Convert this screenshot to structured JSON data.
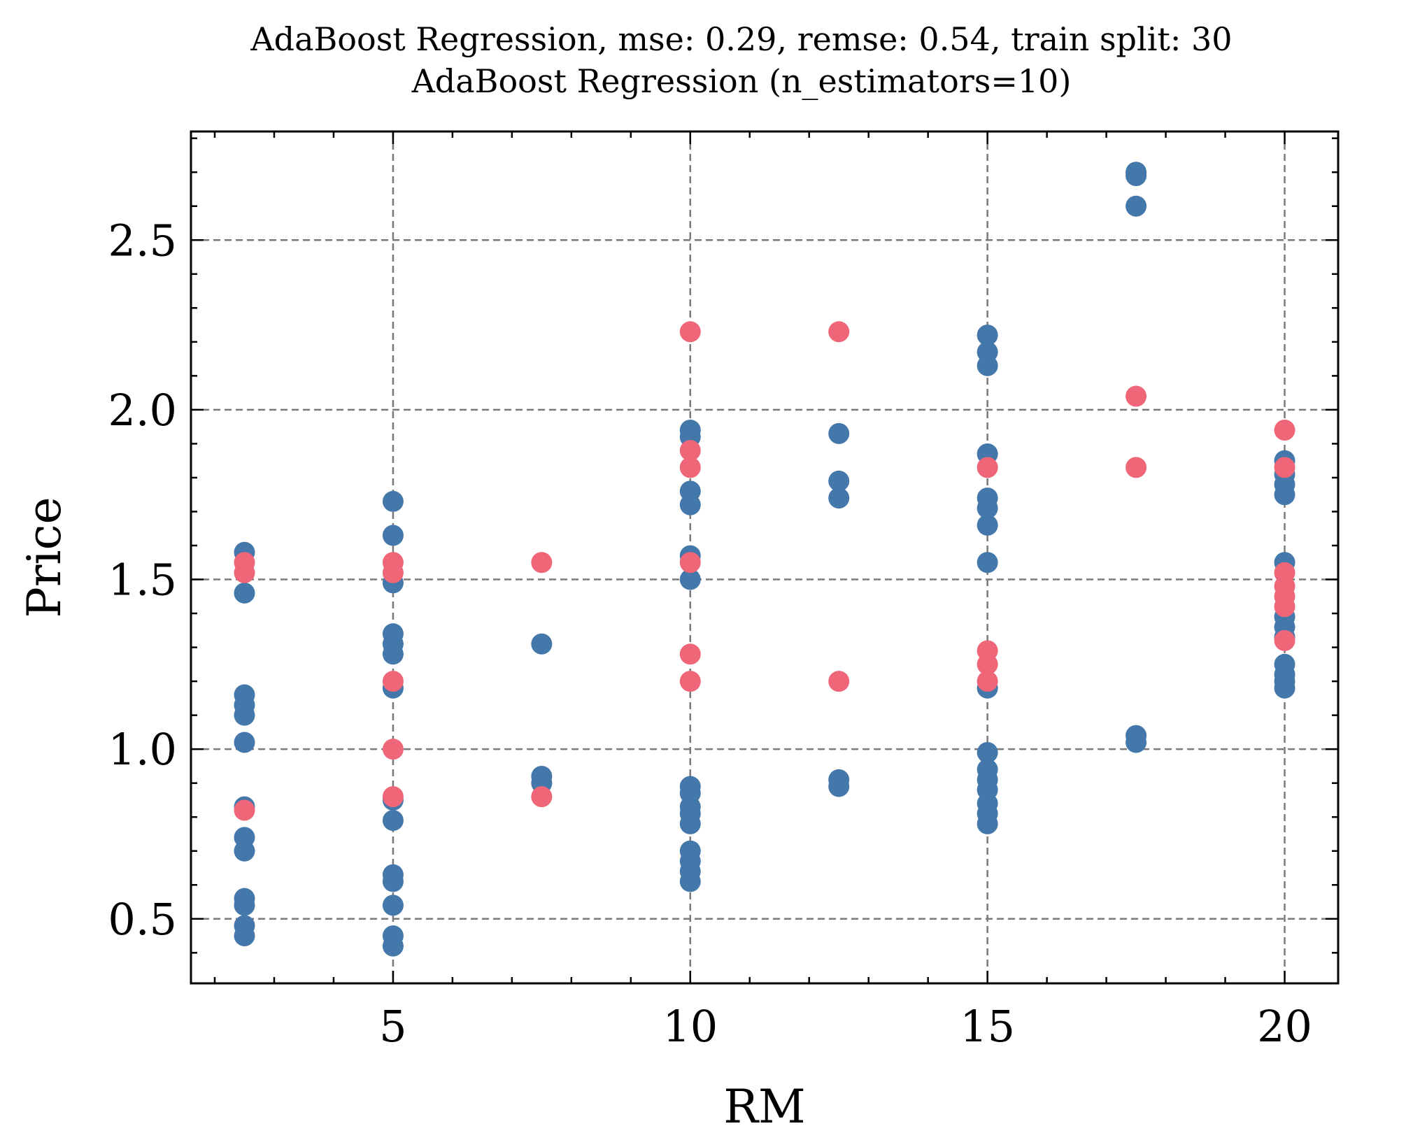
{
  "chart_data": {
    "type": "scatter",
    "title": "AdaBoost Regression, mse: 0.29, remse: 0.54, train split: 30",
    "subtitle": "AdaBoost Regression (n_estimators=10)",
    "xlabel": "RM",
    "ylabel": "Price",
    "xlim": [
      1.6,
      20.9
    ],
    "ylim": [
      0.31,
      2.82
    ],
    "xticks": [
      5,
      10,
      15,
      20
    ],
    "xtick_labels": [
      "5",
      "10",
      "15",
      "20"
    ],
    "yticks": [
      0.5,
      1.0,
      1.5,
      2.0,
      2.5
    ],
    "ytick_labels": [
      "0.5",
      "1.0",
      "1.5",
      "2.0",
      "2.5"
    ],
    "grid": true,
    "series": [
      {
        "color": "#4477aa",
        "points": [
          [
            2.5,
            1.58
          ],
          [
            2.5,
            1.46
          ],
          [
            2.5,
            1.16
          ],
          [
            2.5,
            1.13
          ],
          [
            2.5,
            1.1
          ],
          [
            2.5,
            1.02
          ],
          [
            2.5,
            0.83
          ],
          [
            2.5,
            0.74
          ],
          [
            2.5,
            0.7
          ],
          [
            2.5,
            0.56
          ],
          [
            2.5,
            0.54
          ],
          [
            2.5,
            0.48
          ],
          [
            2.5,
            0.45
          ],
          [
            5.0,
            1.73
          ],
          [
            5.0,
            1.63
          ],
          [
            5.0,
            1.49
          ],
          [
            5.0,
            1.34
          ],
          [
            5.0,
            1.31
          ],
          [
            5.0,
            1.28
          ],
          [
            5.0,
            1.18
          ],
          [
            5.0,
            0.85
          ],
          [
            5.0,
            0.79
          ],
          [
            5.0,
            0.63
          ],
          [
            5.0,
            0.61
          ],
          [
            5.0,
            0.54
          ],
          [
            5.0,
            0.45
          ],
          [
            5.0,
            0.42
          ],
          [
            7.5,
            1.31
          ],
          [
            7.5,
            0.92
          ],
          [
            7.5,
            0.9
          ],
          [
            10.0,
            1.94
          ],
          [
            10.0,
            1.92
          ],
          [
            10.0,
            1.76
          ],
          [
            10.0,
            1.72
          ],
          [
            10.0,
            1.57
          ],
          [
            10.0,
            1.5
          ],
          [
            10.0,
            0.89
          ],
          [
            10.0,
            0.87
          ],
          [
            10.0,
            0.83
          ],
          [
            10.0,
            0.81
          ],
          [
            10.0,
            0.78
          ],
          [
            10.0,
            0.7
          ],
          [
            10.0,
            0.67
          ],
          [
            10.0,
            0.64
          ],
          [
            10.0,
            0.61
          ],
          [
            12.5,
            1.93
          ],
          [
            12.5,
            1.79
          ],
          [
            12.5,
            1.74
          ],
          [
            12.5,
            0.91
          ],
          [
            12.5,
            0.89
          ],
          [
            15.0,
            2.22
          ],
          [
            15.0,
            2.17
          ],
          [
            15.0,
            2.13
          ],
          [
            15.0,
            1.87
          ],
          [
            15.0,
            1.74
          ],
          [
            15.0,
            1.71
          ],
          [
            15.0,
            1.66
          ],
          [
            15.0,
            1.55
          ],
          [
            15.0,
            1.18
          ],
          [
            15.0,
            0.99
          ],
          [
            15.0,
            0.94
          ],
          [
            15.0,
            0.91
          ],
          [
            15.0,
            0.88
          ],
          [
            15.0,
            0.84
          ],
          [
            15.0,
            0.81
          ],
          [
            15.0,
            0.78
          ],
          [
            17.5,
            2.7
          ],
          [
            17.5,
            2.69
          ],
          [
            17.5,
            2.6
          ],
          [
            17.5,
            1.04
          ],
          [
            17.5,
            1.02
          ],
          [
            20.0,
            1.85
          ],
          [
            20.0,
            1.81
          ],
          [
            20.0,
            1.78
          ],
          [
            20.0,
            1.75
          ],
          [
            20.0,
            1.55
          ],
          [
            20.0,
            1.39
          ],
          [
            20.0,
            1.36
          ],
          [
            20.0,
            1.33
          ],
          [
            20.0,
            1.25
          ],
          [
            20.0,
            1.22
          ],
          [
            20.0,
            1.2
          ],
          [
            20.0,
            1.18
          ]
        ]
      },
      {
        "color": "#ee6677",
        "points": [
          [
            2.5,
            1.55
          ],
          [
            2.5,
            1.52
          ],
          [
            2.5,
            0.82
          ],
          [
            5.0,
            1.55
          ],
          [
            5.0,
            1.52
          ],
          [
            5.0,
            1.2
          ],
          [
            5.0,
            1.0
          ],
          [
            5.0,
            0.86
          ],
          [
            7.5,
            1.55
          ],
          [
            7.5,
            0.86
          ],
          [
            10.0,
            2.23
          ],
          [
            10.0,
            1.88
          ],
          [
            10.0,
            1.83
          ],
          [
            10.0,
            1.55
          ],
          [
            10.0,
            1.28
          ],
          [
            10.0,
            1.2
          ],
          [
            12.5,
            2.23
          ],
          [
            12.5,
            1.2
          ],
          [
            15.0,
            1.83
          ],
          [
            15.0,
            1.29
          ],
          [
            15.0,
            1.25
          ],
          [
            15.0,
            1.2
          ],
          [
            17.5,
            2.04
          ],
          [
            17.5,
            1.83
          ],
          [
            20.0,
            1.94
          ],
          [
            20.0,
            1.83
          ],
          [
            20.0,
            1.52
          ],
          [
            20.0,
            1.48
          ],
          [
            20.0,
            1.45
          ],
          [
            20.0,
            1.42
          ],
          [
            20.0,
            1.32
          ]
        ]
      }
    ]
  }
}
